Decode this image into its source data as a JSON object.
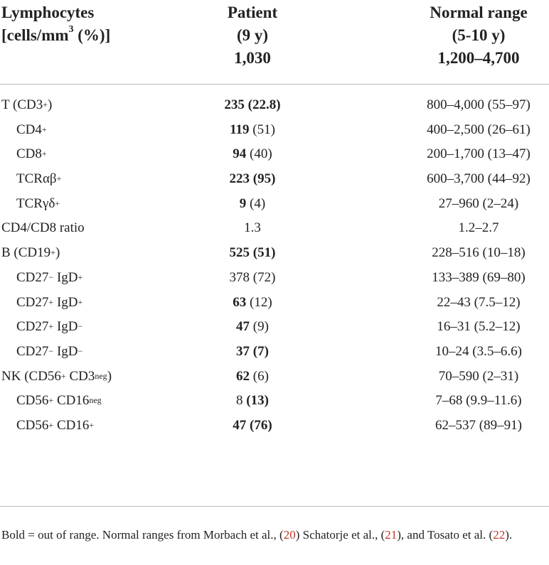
{
  "header": {
    "col1": [
      "Lymphocytes",
      "[cells/mm",
      "3",
      " (%)]"
    ],
    "col2": [
      "Patient",
      "(9 y)",
      "1,030"
    ],
    "col3": [
      "Normal range",
      "(5-10 y)",
      "1,200–4,700"
    ]
  },
  "rows": [
    {
      "label": "T (CD3",
      "sup": "+",
      "tail": ")",
      "indent": false,
      "pv": "235",
      "pp": "(22.8)",
      "pvb": true,
      "ppb": true,
      "range": "800–4,000 (55–97)"
    },
    {
      "label": "CD4",
      "sup": "+",
      "tail": "",
      "indent": true,
      "pv": "119",
      "pp": "(51)",
      "pvb": true,
      "ppb": false,
      "range": "400–2,500 (26–61)"
    },
    {
      "label": "CD8",
      "sup": "+",
      "tail": "",
      "indent": true,
      "pv": "94",
      "pp": "(40)",
      "pvb": true,
      "ppb": false,
      "range": "200–1,700 (13–47)"
    },
    {
      "label": "TCRαβ",
      "sup": "+",
      "tail": "",
      "indent": true,
      "pv": "223",
      "pp": "(95)",
      "pvb": true,
      "ppb": true,
      "range": "600–3,700 (44–92)"
    },
    {
      "label": "TCRγδ",
      "sup": "+",
      "tail": "",
      "indent": true,
      "pv": "9",
      "pp": "(4)",
      "pvb": true,
      "ppb": false,
      "range": "27–960 (2–24)"
    },
    {
      "label": "CD4/CD8 ratio",
      "sup": "",
      "tail": "",
      "indent": false,
      "pv": "1.3",
      "pp": "",
      "pvb": false,
      "ppb": false,
      "range": "1.2–2.7"
    },
    {
      "label": "B (CD19",
      "sup": "+",
      "tail": ")",
      "indent": false,
      "pv": "525",
      "pp": "(51)",
      "pvb": true,
      "ppb": true,
      "range": "228–516 (10–18)"
    },
    {
      "label": "CD27",
      "sup": "−",
      "tail": " IgD",
      "sup2": "+",
      "indent": true,
      "pv": "378",
      "pp": "(72)",
      "pvb": false,
      "ppb": false,
      "range": "133–389 (69–80)"
    },
    {
      "label": "CD27",
      "sup": "+",
      "tail": " IgD",
      "sup2": "+",
      "indent": true,
      "pv": "63",
      "pp": "(12)",
      "pvb": true,
      "ppb": false,
      "range": "22–43 (7.5–12)"
    },
    {
      "label": "CD27",
      "sup": "+",
      "tail": " IgD",
      "sup2": "−",
      "indent": true,
      "pv": "47",
      "pp": "(9)",
      "pvb": true,
      "ppb": false,
      "range": "16–31 (5.2–12)"
    },
    {
      "label": "CD27",
      "sup": "−",
      "tail": " IgD",
      "sup2": "−",
      "indent": true,
      "pv": "37",
      "pp": "(7)",
      "pvb": true,
      "ppb": true,
      "range": "10–24 (3.5–6.6)"
    },
    {
      "label": "NK (CD56",
      "sup": "+",
      "tail": " CD3",
      "sup2": "neg",
      "tail2": ")",
      "indent": false,
      "pv": "62",
      "pp": "(6)",
      "pvb": true,
      "ppb": false,
      "range": "70–590 (2–31)"
    },
    {
      "label": "CD56",
      "sup": "+",
      "tail": " CD16",
      "sup2": "neg",
      "indent": true,
      "pv": "8",
      "pp": "(13)",
      "pvb": false,
      "ppb": true,
      "range": "7–68 (9.9–11.6)"
    },
    {
      "label": "CD56",
      "sup": "+",
      "tail": " CD16",
      "sup2": "+",
      "indent": true,
      "pv": "47",
      "pp": "(76)",
      "pvb": true,
      "ppb": true,
      "range": "62–537 (89–91)"
    }
  ],
  "footnote": {
    "t1": "Bold = out of range. Normal ranges from Morbach et al., (",
    "r1": "20",
    "t2": ") Schatorje et al., (",
    "r2": "21",
    "t3": "), and Tosato et al. (",
    "r3": "22",
    "t4": ")."
  },
  "colors": {
    "text": "#222222",
    "rule": "#bdbdbd",
    "reference": "#c0392b"
  }
}
